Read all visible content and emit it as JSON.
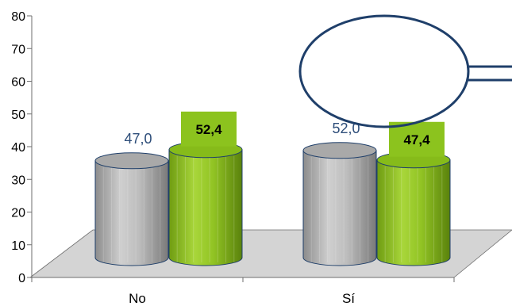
{
  "chart_data": {
    "type": "bar",
    "style": "3d-cylinder",
    "title": "",
    "xlabel": "",
    "ylabel": "",
    "ylim": [
      0,
      80
    ],
    "yticks": [
      0,
      10,
      20,
      30,
      40,
      50,
      60,
      70,
      80
    ],
    "categories": [
      "No",
      "Sí"
    ],
    "series": [
      {
        "values": [
          47.0,
          52.0
        ],
        "labels": [
          "47,0",
          "52,0"
        ],
        "color": "#B4B4B4",
        "label_color": "#2E4E7A",
        "label_box": false
      },
      {
        "values": [
          52.4,
          47.4
        ],
        "labels": [
          "52,4",
          "47,4"
        ],
        "color": "#8CC31E",
        "label_color": "#000000",
        "label_box": true,
        "label_box_color": "#8CC31E"
      }
    ],
    "highlight": {
      "category": "Sí",
      "shape": "ellipse",
      "color": "#1F3F6A"
    },
    "grid": false,
    "legend": "none"
  }
}
